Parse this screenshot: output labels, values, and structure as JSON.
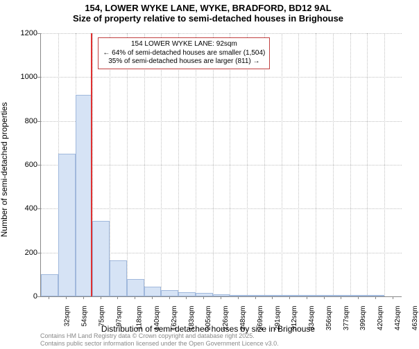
{
  "title_main": "154, LOWER WYKE LANE, WYKE, BRADFORD, BD12 9AL",
  "title_sub": "Size of property relative to semi-detached houses in Brighouse",
  "y_axis_label": "Number of semi-detached properties",
  "x_axis_label": "Distribution of semi-detached houses by size in Brighouse",
  "chart": {
    "type": "histogram",
    "ylim": [
      0,
      1200
    ],
    "ytick_step": 200,
    "yticks": [
      0,
      200,
      400,
      600,
      800,
      1000,
      1200
    ],
    "categories": [
      "32sqm",
      "54sqm",
      "75sqm",
      "97sqm",
      "118sqm",
      "140sqm",
      "162sqm",
      "183sqm",
      "205sqm",
      "226sqm",
      "248sqm",
      "269sqm",
      "291sqm",
      "312sqm",
      "334sqm",
      "356sqm",
      "377sqm",
      "399sqm",
      "420sqm",
      "442sqm",
      "463sqm"
    ],
    "values": [
      100,
      650,
      920,
      345,
      165,
      80,
      45,
      30,
      18,
      15,
      10,
      7,
      5,
      3,
      2,
      2,
      1,
      1,
      1,
      1,
      0
    ],
    "bar_color": "#d6e3f5",
    "bar_border_color": "#a0b8dc",
    "background_color": "#ffffff",
    "grid_color": "#c0c0c0",
    "axis_color": "#888888",
    "ref_line_color": "#e03030",
    "ref_line_position_sqm": 92,
    "annotation_border_color": "#c04040",
    "label_fontsize": 12,
    "tick_fontsize": 11,
    "title_fontsize": 13
  },
  "annotation": {
    "line1": "154 LOWER WYKE LANE: 92sqm",
    "line2": "← 64% of semi-detached houses are smaller (1,504)",
    "line3": "35% of semi-detached houses are larger (811) →"
  },
  "footer": {
    "line1": "Contains HM Land Registry data © Crown copyright and database right 2025.",
    "line2": "Contains public sector information licensed under the Open Government Licence v3.0."
  }
}
